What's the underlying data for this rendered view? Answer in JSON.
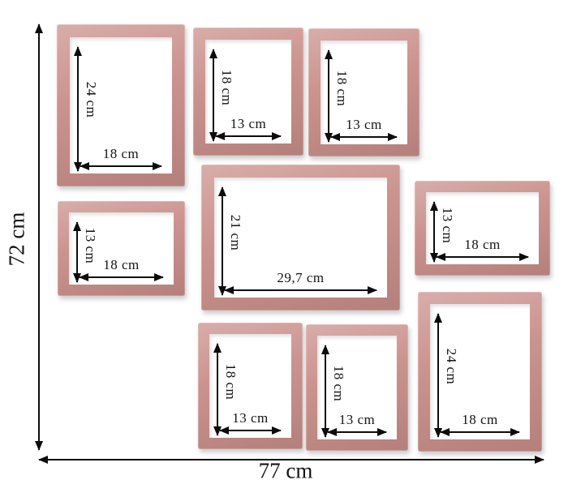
{
  "wall": {
    "height_label": "72 cm",
    "width_label": "77 cm"
  },
  "frames": [
    {
      "position": "top-left",
      "height_label": "24 cm",
      "width_label": "18 cm"
    },
    {
      "position": "top-middle",
      "height_label": "18 cm",
      "width_label": "13 cm"
    },
    {
      "position": "top-right",
      "height_label": "18 cm",
      "width_label": "13 cm"
    },
    {
      "position": "middle-left",
      "height_label": "13 cm",
      "width_label": "18 cm"
    },
    {
      "position": "center",
      "height_label": "21 cm",
      "width_label": "29,7 cm"
    },
    {
      "position": "middle-right",
      "height_label": "13 cm",
      "width_label": "18 cm"
    },
    {
      "position": "bottom-middle-left",
      "height_label": "18 cm",
      "width_label": "13 cm"
    },
    {
      "position": "bottom-middle-right",
      "height_label": "18 cm",
      "width_label": "13 cm"
    },
    {
      "position": "bottom-right",
      "height_label": "24 cm",
      "width_label": "18 cm"
    }
  ],
  "colors": {
    "frame": "#c98e89",
    "dimension_lines": "#0c0c0c",
    "background": "#ffffff"
  }
}
